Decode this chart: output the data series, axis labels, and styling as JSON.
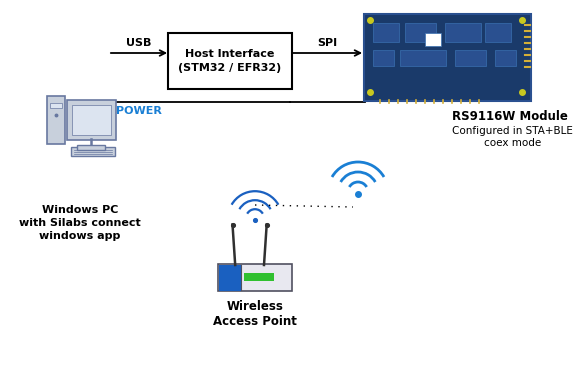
{
  "bg_color": "#ffffff",
  "box_color": "#ffffff",
  "box_edge": "#000000",
  "usb_label": "USB",
  "spi_label": "SPI",
  "power_label": "POWER",
  "pc_label": "Windows PC\nwith Silabs connect\nwindows app",
  "host_label": "Host Interface\n(STM32 / EFR32)",
  "module_label_bold": "RS9116W Module",
  "module_label_normal": "Configured in STA+BLE\ncoex mode",
  "ap_label": "Wireless\nAccess Point",
  "wifi_color": "#1a7fd4",
  "pc_fill": "#c8d0dc",
  "pc_screen_fill": "#dce4f0",
  "pc_edge": "#6878a0",
  "router_blue": "#1a60c0",
  "router_body": "#e8e8f0",
  "router_edge": "#505060",
  "line_color": "#000000",
  "pcb_fill": "#1a3a6a",
  "pcb_edge": "#2a5090"
}
